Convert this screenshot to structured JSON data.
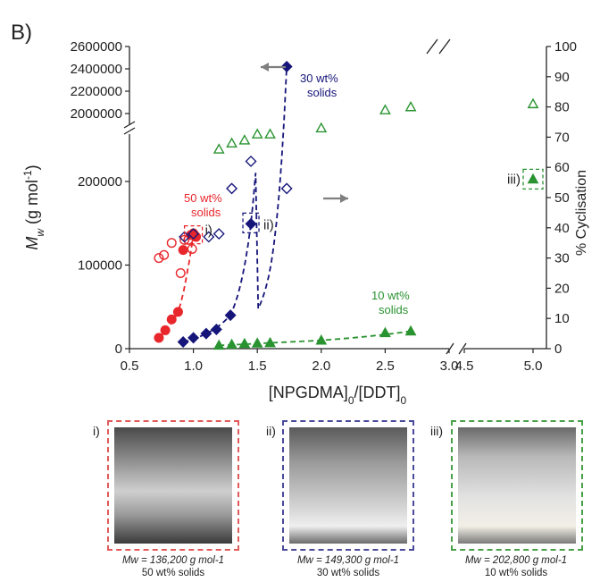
{
  "panel_label": "B)",
  "colors": {
    "series_50": "#e8262b",
    "series_30": "#15157a",
    "series_10": "#2a9331",
    "axis": "#222222",
    "arrow": "#7f7f7f"
  },
  "chart_data": {
    "type": "scatter",
    "xlabel": "[NPGDMA]0/[DDT]0",
    "ylabel_left": "Mw (g mol-1)",
    "ylabel_right": "% Cyclisation",
    "x_ticks": [
      "0.5",
      "1.0",
      "1.5",
      "2.0",
      "2.5",
      "3.0",
      "4.5",
      "5.0"
    ],
    "x_breaks": [
      [
        3.0,
        4.5
      ]
    ],
    "y_left_ticks_lower": [
      "0",
      "100000",
      "200000"
    ],
    "y_left_ticks_upper": [
      "2000000",
      "2200000",
      "2400000",
      "2600000"
    ],
    "y_left_breaks": [
      [
        250000,
        2000000
      ]
    ],
    "y_right_ticks": [
      "0",
      "10",
      "20",
      "30",
      "40",
      "50",
      "60",
      "70",
      "80",
      "90",
      "100"
    ],
    "y_right_range": [
      0,
      100
    ],
    "series": [
      {
        "name": "50 wt% solids",
        "axis": "left",
        "marker": "circle-filled",
        "x": [
          0.73,
          0.78,
          0.83,
          0.88,
          0.92,
          0.98,
          1.0,
          1.02
        ],
        "y": [
          13000,
          22000,
          35000,
          44000,
          118000,
          136000,
          138000,
          134000
        ]
      },
      {
        "name": "50 wt% solids",
        "axis": "right",
        "marker": "circle-open",
        "x": [
          0.73,
          0.77,
          0.83,
          0.9,
          0.93,
          0.96,
          0.99,
          1.02
        ],
        "y": [
          30,
          31,
          35,
          25,
          36,
          36,
          33,
          37
        ]
      },
      {
        "name": "30 wt% solids",
        "axis": "left",
        "marker": "diamond-filled",
        "x": [
          0.92,
          1.0,
          1.1,
          1.18,
          1.29,
          1.45,
          1.73
        ],
        "y": [
          8000,
          13000,
          18000,
          23000,
          40000,
          149300,
          2420000
        ]
      },
      {
        "name": "30 wt% solids",
        "axis": "right",
        "marker": "diamond-open",
        "x": [
          0.93,
          1.0,
          1.12,
          1.2,
          1.3,
          1.45,
          1.73
        ],
        "y": [
          37,
          38,
          37,
          38,
          53,
          62,
          53
        ]
      },
      {
        "name": "10 wt% solids",
        "axis": "left",
        "marker": "triangle-filled",
        "x": [
          1.2,
          1.3,
          1.4,
          1.5,
          1.6,
          2.0,
          2.5,
          2.7,
          5.0
        ],
        "y": [
          4000,
          5000,
          6000,
          6500,
          7000,
          10000,
          19000,
          21000,
          202800
        ]
      },
      {
        "name": "10 wt% solids",
        "axis": "right",
        "marker": "triangle-open",
        "x": [
          1.2,
          1.3,
          1.4,
          1.5,
          1.6,
          2.0,
          2.5,
          2.7,
          5.0
        ],
        "y": [
          66,
          68,
          69,
          71,
          71,
          73,
          79,
          80,
          81
        ]
      }
    ],
    "annotations": [
      {
        "text": "30 wt%",
        "text2": "solids",
        "series": "30"
      },
      {
        "text": "50 wt%",
        "text2": "solids",
        "series": "50"
      },
      {
        "text": "10 wt%",
        "text2": "solids",
        "series": "10"
      },
      {
        "text": "i)",
        "x": 1.0,
        "y": 136200
      },
      {
        "text": "ii)",
        "x": 1.45,
        "y": 149300
      },
      {
        "text": "iii)",
        "x": 5.0,
        "y": 202800
      }
    ]
  },
  "photos": [
    {
      "tag": "i)",
      "mw": "Mw = 136,200 g mol-1",
      "solids": "50 wt% solids"
    },
    {
      "tag": "ii)",
      "mw": "Mw = 149,300 g mol-1",
      "solids": "30 wt% solids"
    },
    {
      "tag": "iii)",
      "mw": "Mw = 202,800 g mol-1",
      "solids": "10 wt% solids"
    }
  ]
}
